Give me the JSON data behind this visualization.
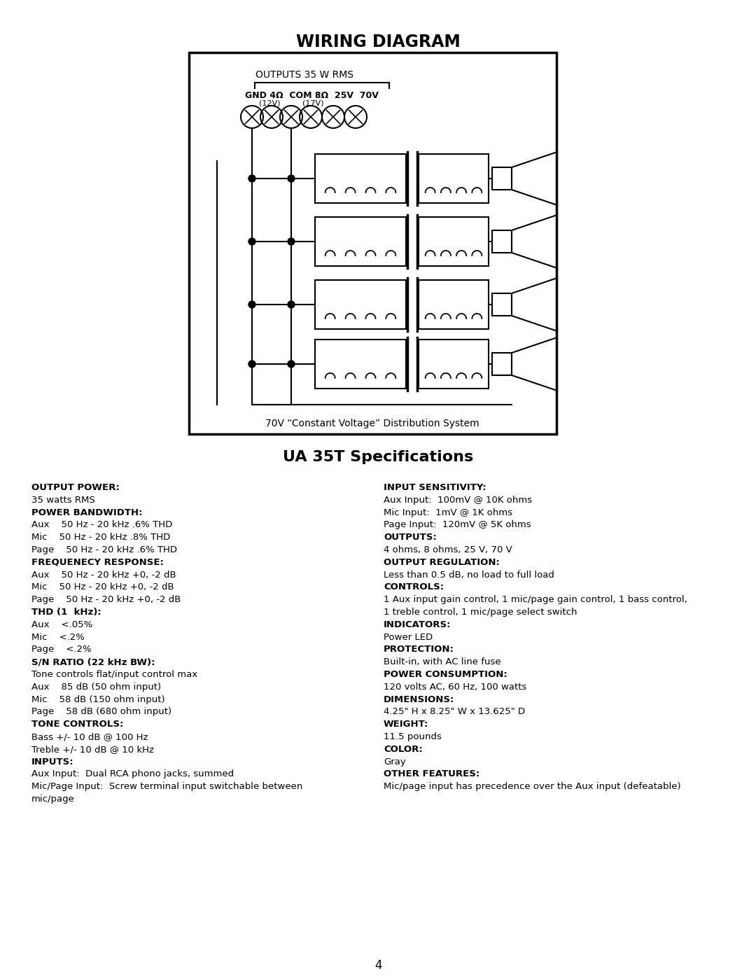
{
  "title": "WIRING DIAGRAM",
  "specs_title": "UA 35T Specifications",
  "page_number": "4",
  "bg": "#ffffff",
  "outputs_label": "OUTPUTS 35 W RMS",
  "terminal_line1": "GND 4Ω  COM 8Ω  25V  70V",
  "terminal_line2_a": "(12V)",
  "terminal_line2_b": "(17V)",
  "bottom_caption": "70V “Constant Voltage” Distribution System",
  "left_specs": [
    {
      "bold": true,
      "text": "OUTPUT POWER:"
    },
    {
      "bold": false,
      "text": "35 watts RMS"
    },
    {
      "bold": true,
      "text": "POWER BANDWIDTH:"
    },
    {
      "bold": false,
      "text": "Aux\t\t50 Hz - 20 kHz .6% THD"
    },
    {
      "bold": false,
      "text": "Mic\t\t50 Hz - 20 kHz .8% THD"
    },
    {
      "bold": false,
      "text": "Page\t\t50 Hz - 20 kHz .6% THD"
    },
    {
      "bold": true,
      "text": "FREQUENECY RESPONSE:"
    },
    {
      "bold": false,
      "text": "Aux\t\t50 Hz - 20 kHz +0, -2 dB"
    },
    {
      "bold": false,
      "text": "Mic\t\t50 Hz - 20 kHz +0, -2 dB"
    },
    {
      "bold": false,
      "text": "Page\t\t50 Hz - 20 kHz +0, -2 dB"
    },
    {
      "bold": true,
      "text": "THD (1  kHz):"
    },
    {
      "bold": false,
      "text": "Aux\t\t<.05%"
    },
    {
      "bold": false,
      "text": "Mic\t\t<.2%"
    },
    {
      "bold": false,
      "text": "Page\t\t<.2%"
    },
    {
      "bold": true,
      "text": "S/N RATIO (22 kHz BW):"
    },
    {
      "bold": false,
      "text": "Tone controls flat/input control max"
    },
    {
      "bold": false,
      "text": "Aux\t\t85 dB (50 ohm input)"
    },
    {
      "bold": false,
      "text": "Mic\t\t58 dB (150 ohm input)"
    },
    {
      "bold": false,
      "text": "Page\t\t58 dB (680 ohm input)"
    },
    {
      "bold": true,
      "text": "TONE CONTROLS:"
    },
    {
      "bold": false,
      "text": "Bass +/- 10 dB @ 100 Hz"
    },
    {
      "bold": false,
      "text": "Treble +/- 10 dB @ 10 kHz"
    },
    {
      "bold": true,
      "text": "INPUTS:"
    },
    {
      "bold": false,
      "text": "Aux Input:  Dual RCA phono jacks, summed"
    },
    {
      "bold": false,
      "text": "Mic/Page Input:  Screw terminal input switchable between"
    },
    {
      "bold": false,
      "text": "mic/page"
    }
  ],
  "right_specs": [
    {
      "bold": true,
      "text": "INPUT SENSITIVITY:"
    },
    {
      "bold": false,
      "text": "Aux Input:\t100mV @ 10K ohms"
    },
    {
      "bold": false,
      "text": "Mic Input:\t1mV @ 1K ohms"
    },
    {
      "bold": false,
      "text": "Page Input:\t120mV @ 5K ohms"
    },
    {
      "bold": true,
      "text": "OUTPUTS:"
    },
    {
      "bold": false,
      "text": "4 ohms, 8 ohms, 25 V, 70 V"
    },
    {
      "bold": true,
      "text": "OUTPUT REGULATION:"
    },
    {
      "bold": false,
      "text": "Less than 0.5 dB, no load to full load"
    },
    {
      "bold": true,
      "text": "CONTROLS:"
    },
    {
      "bold": false,
      "text": "1 Aux input gain control, 1 mic/page gain control, 1 bass control,"
    },
    {
      "bold": false,
      "text": "1 treble control, 1 mic/page select switch"
    },
    {
      "bold": true,
      "text": "INDICATORS:"
    },
    {
      "bold": false,
      "text": "Power LED"
    },
    {
      "bold": true,
      "text": "PROTECTION:"
    },
    {
      "bold": false,
      "text": "Built-in, with AC line fuse"
    },
    {
      "bold": true,
      "text": "POWER CONSUMPTION:"
    },
    {
      "bold": false,
      "text": "120 volts AC, 60 Hz, 100 watts"
    },
    {
      "bold": true,
      "text": "DIMENSIONS:"
    },
    {
      "bold": false,
      "text": "4.25\" H x 8.25\" W x 13.625\" D"
    },
    {
      "bold": true,
      "text": "WEIGHT:"
    },
    {
      "bold": false,
      "text": "11.5 pounds"
    },
    {
      "bold": true,
      "text": "COLOR:"
    },
    {
      "bold": false,
      "text": "Gray"
    },
    {
      "bold": true,
      "text": "OTHER FEATURES:"
    },
    {
      "bold": false,
      "text": "Mic/page input has precedence over the Aux input (defeatable)"
    }
  ]
}
